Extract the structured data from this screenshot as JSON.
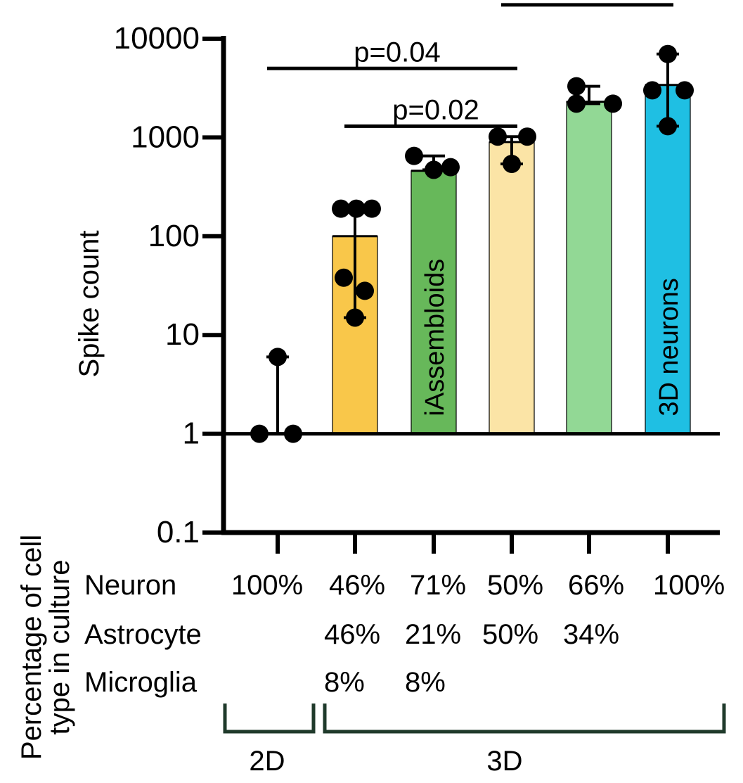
{
  "chart_data": {
    "type": "bar",
    "ylabel": "Spike count",
    "yscale": "log",
    "ylim": [
      0.1,
      10000
    ],
    "yticks": [
      {
        "value": 0.1,
        "label": "0.1"
      },
      {
        "value": 1,
        "label": "1"
      },
      {
        "value": 10,
        "label": "10"
      },
      {
        "value": 100,
        "label": "100"
      },
      {
        "value": 1000,
        "label": "1000"
      },
      {
        "value": 10000,
        "label": "10000"
      }
    ],
    "bars": [
      {
        "value": 1,
        "color": "#ffffff",
        "label": "",
        "points": [
          1,
          1,
          6
        ],
        "error": [
          1,
          6
        ]
      },
      {
        "value": 100,
        "color": "#f9c74a",
        "label": "",
        "points": [
          190,
          190,
          190,
          38,
          28,
          15
        ],
        "error": [
          15,
          190
        ]
      },
      {
        "value": 460,
        "color": "#67b85a",
        "label": "iAssembloids",
        "points": [
          650,
          470,
          500
        ],
        "error": [
          470,
          650
        ]
      },
      {
        "value": 900,
        "color": "#fbe4a6",
        "label": "",
        "points": [
          1020,
          1020,
          540
        ],
        "error": [
          540,
          1020
        ]
      },
      {
        "value": 2300,
        "color": "#92d895",
        "label": "",
        "points": [
          3300,
          2200,
          2200
        ],
        "error": [
          2200,
          3300
        ]
      },
      {
        "value": 3400,
        "color": "#1fbfe3",
        "label": "3D neurons",
        "points": [
          7000,
          3000,
          3000,
          1300
        ],
        "error": [
          1300,
          7000
        ]
      }
    ],
    "significance": [
      {
        "from": 0,
        "to": 3,
        "value": 5000,
        "label": "p=0.04"
      },
      {
        "from": 1,
        "to": 3,
        "value": 1300,
        "label": "p=0.02"
      },
      {
        "from": 3,
        "to": 5,
        "value": 22000,
        "label": ""
      }
    ],
    "composition_title": "Percentage of cell type in culture",
    "composition": [
      {
        "name": "Neuron",
        "values": [
          "100%",
          "46%",
          "71%",
          "50%",
          "66%",
          "100%"
        ]
      },
      {
        "name": "Astrocyte",
        "values": [
          "",
          "46%",
          "21%",
          "50%",
          "34%",
          ""
        ]
      },
      {
        "name": "Microglia",
        "values": [
          "",
          "8%",
          "8%",
          "",
          "",
          ""
        ]
      }
    ],
    "groups": [
      {
        "label": "2D",
        "from": 0,
        "to": 0
      },
      {
        "label": "3D",
        "from": 1,
        "to": 5
      }
    ],
    "colors": {
      "axis": "#000000",
      "group_bracket": "#1f3a2b"
    }
  }
}
